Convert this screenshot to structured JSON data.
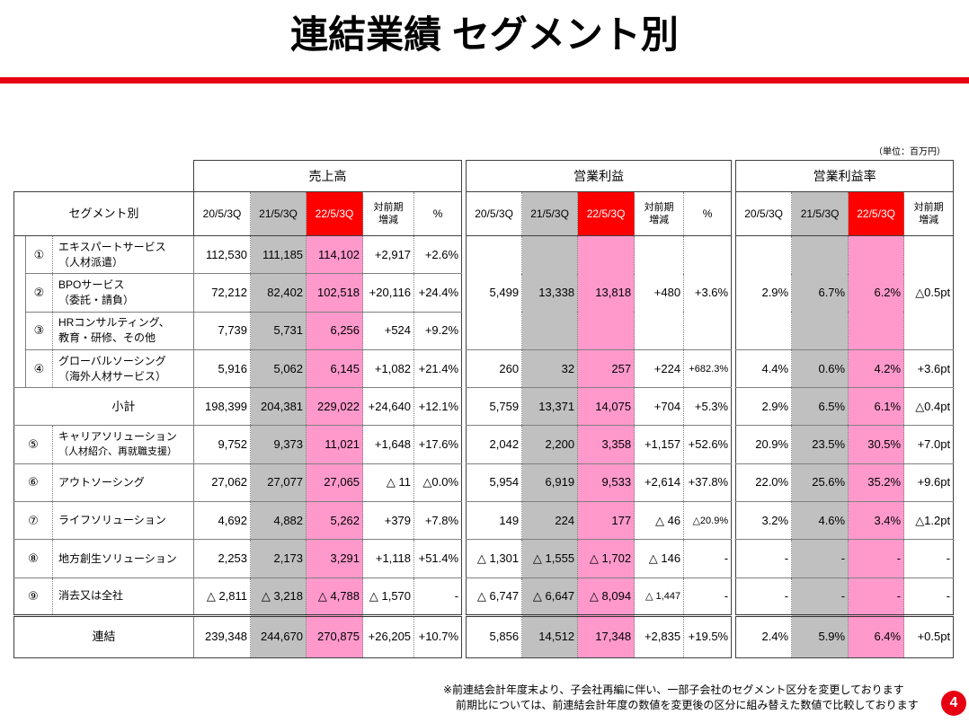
{
  "colors": {
    "title_rule_red": "#e60012",
    "prior_year_gray": "#c0c0c0",
    "current_period_pink": "#ff99cc",
    "current_period_header_red": "#ff0000",
    "page_badge_red": "#e60012"
  },
  "slide": {
    "title": "連結業績 セグメント別",
    "unit": "（単位：百万円）",
    "page_number": "4",
    "footnotes": [
      "※前連結会計年度末より、子会社再編に伴い、一部子会社のセグメント区分を変更しております",
      "前期比については、前連結会計年度の数値を変更後の区分に組み替えた数値で比較しております"
    ]
  },
  "table": {
    "segment_header": "セグメント別",
    "periods": [
      "20/5/3Q",
      "21/5/3Q",
      "22/5/3Q"
    ],
    "change_header": [
      "対前期",
      "増減"
    ],
    "pct_header": "%",
    "groups": [
      {
        "key": "sales",
        "title": "売上高"
      },
      {
        "key": "op",
        "title": "営業利益"
      },
      {
        "key": "margin",
        "title": "営業利益率"
      }
    ],
    "combined_rows_1_3": {
      "op": [
        "5,499",
        "13,338",
        "13,818",
        "+480",
        "+3.6%"
      ],
      "margin": [
        "2.9%",
        "6.7%",
        "6.2%",
        "△0.5pt"
      ]
    },
    "rows": [
      {
        "no": "①",
        "name": [
          "エキスパートサービス",
          "（人材派遣）"
        ],
        "sales": [
          "112,530",
          "111,185",
          "114,102",
          "+2,917",
          "+2.6%"
        ]
      },
      {
        "no": "②",
        "name": [
          "BPOサービス",
          "（委託・請負）"
        ],
        "sales": [
          "72,212",
          "82,402",
          "102,518",
          "+20,116",
          "+24.4%"
        ]
      },
      {
        "no": "③",
        "name": [
          "HRコンサルティング、",
          "教育・研修、その他"
        ],
        "sales": [
          "7,739",
          "5,731",
          "6,256",
          "+524",
          "+9.2%"
        ]
      },
      {
        "no": "④",
        "name": [
          "グローバルソーシング",
          "（海外人材サービス）"
        ],
        "sales": [
          "5,916",
          "5,062",
          "6,145",
          "+1,082",
          "+21.4%"
        ],
        "op": [
          "260",
          "32",
          "257",
          "+224",
          "+682.3%"
        ],
        "margin": [
          "4.4%",
          "0.6%",
          "4.2%",
          "+3.6pt"
        ]
      },
      {
        "label": "小計",
        "sales": [
          "198,399",
          "204,381",
          "229,022",
          "+24,640",
          "+12.1%"
        ],
        "op": [
          "5,759",
          "13,371",
          "14,075",
          "+704",
          "+5.3%"
        ],
        "margin": [
          "2.9%",
          "6.5%",
          "6.1%",
          "△0.4pt"
        ]
      },
      {
        "no": "⑤",
        "name": [
          "キャリアソリューション",
          "（人材紹介、再就職支援）"
        ],
        "sales": [
          "9,752",
          "9,373",
          "11,021",
          "+1,648",
          "+17.6%"
        ],
        "op": [
          "2,042",
          "2,200",
          "3,358",
          "+1,157",
          "+52.6%"
        ],
        "margin": [
          "20.9%",
          "23.5%",
          "30.5%",
          "+7.0pt"
        ]
      },
      {
        "no": "⑥",
        "name": [
          "アウトソーシング"
        ],
        "sales": [
          "27,062",
          "27,077",
          "27,065",
          "△ 11",
          "△0.0%"
        ],
        "op": [
          "5,954",
          "6,919",
          "9,533",
          "+2,614",
          "+37.8%"
        ],
        "margin": [
          "22.0%",
          "25.6%",
          "35.2%",
          "+9.6pt"
        ]
      },
      {
        "no": "⑦",
        "name": [
          "ライフソリューション"
        ],
        "sales": [
          "4,692",
          "4,882",
          "5,262",
          "+379",
          "+7.8%"
        ],
        "op": [
          "149",
          "224",
          "177",
          "△ 46",
          "△20.9%"
        ],
        "margin": [
          "3.2%",
          "4.6%",
          "3.4%",
          "△1.2pt"
        ]
      },
      {
        "no": "⑧",
        "name": [
          "地方創生ソリューション"
        ],
        "sales": [
          "2,253",
          "2,173",
          "3,291",
          "+1,118",
          "+51.4%"
        ],
        "op": [
          "△ 1,301",
          "△ 1,555",
          "△ 1,702",
          "△ 146",
          "-"
        ],
        "margin": [
          "-",
          "-",
          "-",
          "-"
        ]
      },
      {
        "no": "⑨",
        "name": [
          "消去又は全社"
        ],
        "sales": [
          "△ 2,811",
          "△ 3,218",
          "△ 4,788",
          "△ 1,570",
          "-"
        ],
        "op": [
          "△ 6,747",
          "△ 6,647",
          "△ 8,094",
          "△ 1,447",
          "-"
        ],
        "margin": [
          "-",
          "-",
          "-",
          "-"
        ]
      },
      {
        "label": "連結",
        "sales": [
          "239,348",
          "244,670",
          "270,875",
          "+26,205",
          "+10.7%"
        ],
        "op": [
          "5,856",
          "14,512",
          "17,348",
          "+2,835",
          "+19.5%"
        ],
        "margin": [
          "2.4%",
          "5.9%",
          "6.4%",
          "+0.5pt"
        ]
      }
    ]
  }
}
